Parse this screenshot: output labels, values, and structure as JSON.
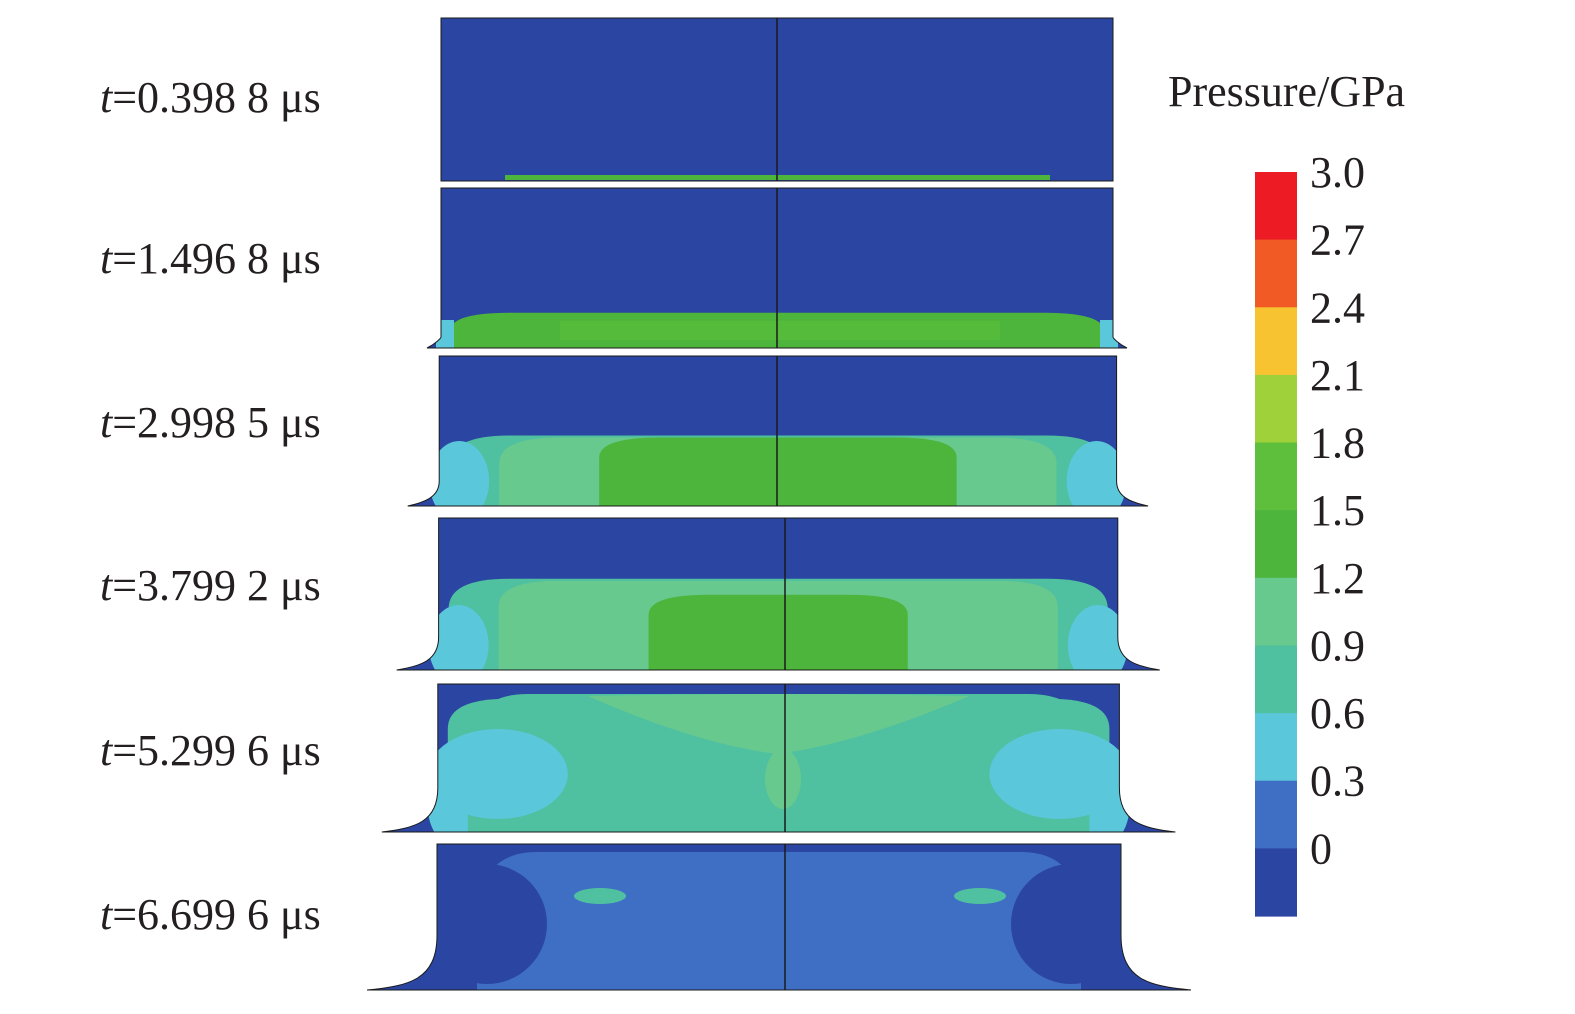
{
  "figure": {
    "frames": [
      {
        "label_var": "t",
        "label_rest": "=0.398 8 μs",
        "spread": 0.0,
        "front_depth": 0.03,
        "peak_level": 5
      },
      {
        "label_var": "t",
        "label_rest": "=1.496 8 μs",
        "spread": 0.2,
        "front_depth": 0.22,
        "peak_level": 6
      },
      {
        "label_var": "t",
        "label_rest": "=2.998 5 μs",
        "spread": 0.45,
        "front_depth": 0.47,
        "peak_level": 5
      },
      {
        "label_var": "t",
        "label_rest": "=3.799 2 μs",
        "spread": 0.6,
        "front_depth": 0.6,
        "peak_level": 5
      },
      {
        "label_var": "t",
        "label_rest": "=5.299 6 μs",
        "spread": 0.8,
        "front_depth": 0.9,
        "peak_level": 4
      },
      {
        "label_var": "t",
        "label_rest": "=6.699 6 μs",
        "spread": 1.0,
        "front_depth": 1.0,
        "peak_level": 2
      }
    ]
  },
  "legend": {
    "title": "Pressure/GPa",
    "ticks": [
      "3.0",
      "2.7",
      "2.4",
      "2.1",
      "1.8",
      "1.5",
      "1.2",
      "0.9",
      "0.6",
      "0.3",
      "0"
    ],
    "colors_top_to_bottom": [
      "#ed1c24",
      "#f15a24",
      "#f7c331",
      "#9ed13a",
      "#5dbf3b",
      "#4db53c",
      "#67c98e",
      "#4fc0a0",
      "#5bc7da",
      "#3f6fc4",
      "#2b45a2"
    ]
  },
  "background_color": "#2b45a2",
  "outline_color": "#1a1a1a"
}
